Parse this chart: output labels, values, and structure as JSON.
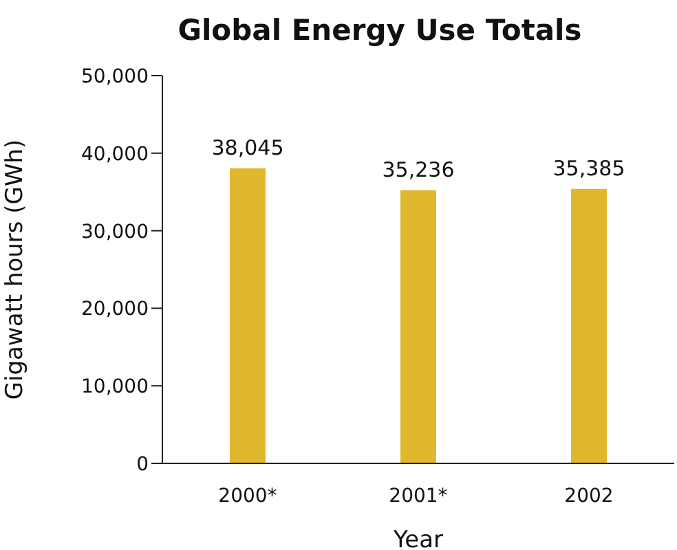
{
  "chart_data": {
    "type": "bar",
    "title": "Global Energy Use Totals",
    "xlabel": "Year",
    "ylabel": "Gigawatt hours (GWh)",
    "categories": [
      "2000*",
      "2001*",
      "2002"
    ],
    "values": [
      38045,
      35236,
      35385
    ],
    "value_labels": [
      "38,045",
      "35,236",
      "35,385"
    ],
    "color": "#e0b82e",
    "ylim": [
      0,
      50000
    ],
    "yticks": [
      {
        "value": 0,
        "label": "0"
      },
      {
        "value": 10000,
        "label": "10,000"
      },
      {
        "value": 20000,
        "label": "20,000"
      },
      {
        "value": 30000,
        "label": "30,000"
      },
      {
        "value": 40000,
        "label": "40,000"
      },
      {
        "value": 50000,
        "label": "50,000"
      }
    ],
    "grid": false,
    "legend": false
  }
}
